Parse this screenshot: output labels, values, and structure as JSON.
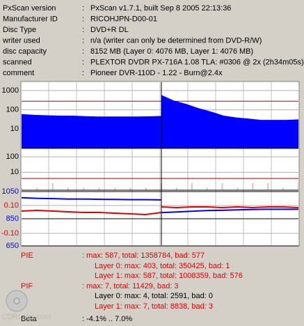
{
  "info": {
    "rows": [
      [
        "PxScan version",
        "PxScan v1.7.1, built Sep  8 2005 22:13:36"
      ],
      [
        "Manufacturer ID",
        "RICOHJPN-D00-01"
      ],
      [
        "Disc Type",
        "DVD+R DL"
      ],
      [
        "writer used",
        "n/a (writer can only be determined from DVD-R/W)"
      ],
      [
        "disc capacity",
        "8152 MB (Layer 0: 4076 MB,  Layer 1: 4076 MB)"
      ],
      [
        "scanned",
        "PLEXTOR DVDR PX-716A 1.08 TLA: #0306 @ 2x (2h34m05s)"
      ],
      [
        "comment",
        "Pioneer DVR-110D - 1.22 - Burn@2.4x"
      ]
    ]
  },
  "graph": {
    "pie": {
      "ylim": [
        1,
        2700
      ],
      "yticks": [
        1000,
        100,
        10
      ],
      "threshold": 280,
      "color": "#0000ff",
      "layer0": [
        60,
        55,
        52,
        50,
        50,
        47,
        45,
        45,
        45,
        45,
        46,
        48
      ],
      "layer1": [
        587,
        300,
        200,
        120,
        80,
        50,
        40,
        35,
        30,
        30,
        30,
        32
      ]
    },
    "pif": {
      "ylim": [
        0.7,
        350
      ],
      "yticks": [
        100,
        10
      ],
      "threshold": 4,
      "color": "#f4b8b8",
      "layer0": [
        1,
        1,
        2,
        1,
        1,
        1,
        1,
        1,
        1,
        1
      ],
      "layer1": [
        2,
        1,
        2,
        1,
        2,
        1,
        2,
        2,
        1,
        2
      ]
    },
    "jitter": {
      "ylim": [
        640,
        1060
      ],
      "yticks": [
        650,
        850,
        1050
      ],
      "color": "#0000ff",
      "layer0": [
        1005,
        1000,
        998,
        995,
        995,
        993,
        992,
        990,
        990,
        988
      ],
      "layer1": [
        895,
        900,
        905,
        910,
        912,
        915,
        918,
        920,
        920,
        920
      ]
    },
    "beta": {
      "ylim": [
        -0.2,
        0.21
      ],
      "yticks": [
        {
          "value": 0.1,
          "label": "0.10"
        },
        {
          "value": -0.1,
          "label": "-0.10"
        }
      ],
      "color": "#e00000",
      "layer0": [
        0.06,
        0.065,
        0.06,
        0.055,
        0.05,
        0.05,
        0.045,
        0.04,
        0.035,
        0.05
      ],
      "layer1": [
        0.09,
        0.085,
        0.09,
        0.09,
        0.085,
        0.09,
        0.085,
        0.09,
        0.09,
        0.085
      ]
    }
  },
  "stats": {
    "pie": {
      "label": "PIE",
      "text": ": max: 587, total: 1358784, bad: 577",
      "layer0": "Layer 0: max: 403, total: 350425, bad: 1",
      "layer1": "Layer 1: max: 587, total: 1008359, bad: 576"
    },
    "pif": {
      "label": "PIF",
      "text": ": max: 7, total: 11429, bad: 3",
      "layer0": "Layer 0: max: 4, total: 2591, bad: 0",
      "layer1": "Layer 1: max: 7, total: 8838, bad: 3"
    },
    "beta": {
      "label": "Beta",
      "text": ": -4.1% .. 7.0%"
    },
    "watermark": "CDRLabs.com"
  }
}
